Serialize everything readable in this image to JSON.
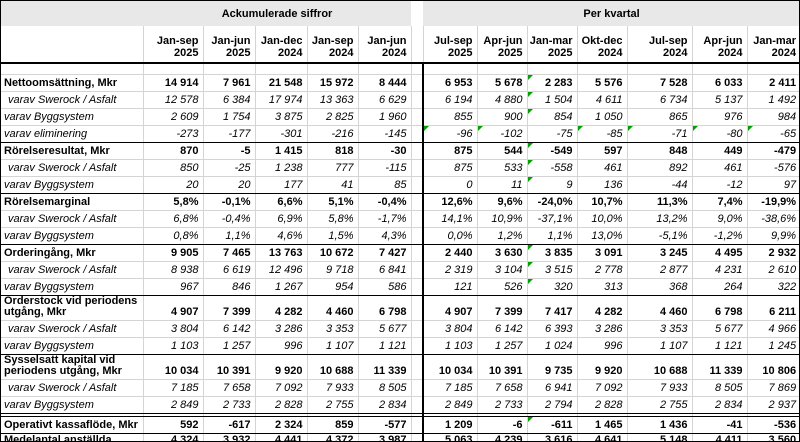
{
  "colors": {
    "band_bg": "#e8e8e8",
    "gridline": "#d4d4d4",
    "section_border": "#000000",
    "flag_green": "#00a000"
  },
  "table": {
    "group_headers": [
      {
        "label": "Ackumulerade siffror"
      },
      {
        "label": "Per kvartal"
      }
    ],
    "columns_left": [
      {
        "period": "Jan-sep",
        "year": "2025"
      },
      {
        "period": "Jan-jun",
        "year": "2025"
      },
      {
        "period": "Jan-dec",
        "year": "2024"
      },
      {
        "period": "Jan-sep",
        "year": "2024"
      },
      {
        "period": "Jan-jun",
        "year": "2024"
      }
    ],
    "columns_right": [
      {
        "period": "Jul-sep",
        "year": "2025"
      },
      {
        "period": "Apr-jun",
        "year": "2025"
      },
      {
        "period": "Jan-mar",
        "year": "2025"
      },
      {
        "period": "Okt-dec",
        "year": "2024"
      },
      {
        "period": "Jul-sep",
        "year": "2024"
      },
      {
        "period": "Apr-jun",
        "year": "2024"
      },
      {
        "period": "Jan-mar",
        "year": "2024"
      }
    ],
    "rows": [
      {
        "label": "Nettoomsättning, Mkr",
        "style": "section",
        "left": [
          "14 914",
          "7 961",
          "21 548",
          "15 972",
          "8 444"
        ],
        "right": [
          "6 953",
          "5 678",
          "2 283",
          "5 576",
          "7 528",
          "6 033",
          "2 411"
        ],
        "flags": [
          2
        ]
      },
      {
        "label": "varav Swerock / Asfalt",
        "style": "sub",
        "indent": 1,
        "left": [
          "12 578",
          "6 384",
          "17 974",
          "13 363",
          "6 629"
        ],
        "right": [
          "6 194",
          "4 880",
          "1 504",
          "4 611",
          "6 734",
          "5 137",
          "1 492"
        ],
        "flags": [
          2
        ]
      },
      {
        "label": "varav Byggsystem",
        "style": "sub",
        "left": [
          "2 609",
          "1 754",
          "3 875",
          "2 825",
          "1 960"
        ],
        "right": [
          "855",
          "900",
          "854",
          "1 050",
          "865",
          "976",
          "984"
        ],
        "flags": [
          2
        ]
      },
      {
        "label": "varav eliminering",
        "style": "sub",
        "left": [
          "-273",
          "-177",
          "-301",
          "-216",
          "-145"
        ],
        "right": [
          "-96",
          "-102",
          "-75",
          "-85",
          "-71",
          "-80",
          "-65"
        ],
        "flags": [
          0,
          1,
          3,
          4,
          5,
          6
        ]
      },
      {
        "label": "Rörelseresultat, Mkr",
        "style": "section",
        "left": [
          "870",
          "-5",
          "1 415",
          "818",
          "-30"
        ],
        "right": [
          "875",
          "544",
          "-549",
          "597",
          "848",
          "449",
          "-479"
        ],
        "flags": [
          2
        ]
      },
      {
        "label": "varav Swerock / Asfalt",
        "style": "sub",
        "indent": 1,
        "left": [
          "850",
          "-25",
          "1 238",
          "777",
          "-115"
        ],
        "right": [
          "875",
          "533",
          "-558",
          "461",
          "892",
          "461",
          "-576"
        ],
        "flags": [
          2
        ]
      },
      {
        "label": "varav Byggsystem",
        "style": "sub",
        "left": [
          "20",
          "20",
          "177",
          "41",
          "85"
        ],
        "right": [
          "0",
          "11",
          "9",
          "136",
          "-44",
          "-12",
          "97"
        ],
        "flags": [
          2
        ]
      },
      {
        "label": "Rörelsemarginal",
        "style": "section",
        "left": [
          "5,8%",
          "-0,1%",
          "6,6%",
          "5,1%",
          "-0,4%"
        ],
        "right": [
          "12,6%",
          "9,6%",
          "-24,0%",
          "10,7%",
          "11,3%",
          "7,4%",
          "-19,9%"
        ],
        "flags": []
      },
      {
        "label": "varav Swerock / Asfalt",
        "style": "sub",
        "indent": 1,
        "left": [
          "6,8%",
          "-0,4%",
          "6,9%",
          "5,8%",
          "-1,7%"
        ],
        "right": [
          "14,1%",
          "10,9%",
          "-37,1%",
          "10,0%",
          "13,2%",
          "9,0%",
          "-38,6%"
        ],
        "flags": []
      },
      {
        "label": "varav Byggsystem",
        "style": "sub",
        "left": [
          "0,8%",
          "1,1%",
          "4,6%",
          "1,5%",
          "4,3%"
        ],
        "right": [
          "0,0%",
          "1,2%",
          "1,1%",
          "13,0%",
          "-5,1%",
          "-1,2%",
          "9,9%"
        ],
        "flags": []
      },
      {
        "label": "Orderingång, Mkr",
        "style": "section",
        "left": [
          "9 905",
          "7 465",
          "13 763",
          "10 672",
          "7 427"
        ],
        "right": [
          "2 440",
          "3 630",
          "3 835",
          "3 091",
          "3 245",
          "4 495",
          "2 932"
        ],
        "flags": [
          2
        ]
      },
      {
        "label": "varav Swerock / Asfalt",
        "style": "sub",
        "indent": 1,
        "left": [
          "8 938",
          "6 619",
          "12 496",
          "9 718",
          "6 841"
        ],
        "right": [
          "2 319",
          "3 104",
          "3 515",
          "2 778",
          "2 877",
          "4 231",
          "2 610"
        ],
        "flags": [
          2
        ]
      },
      {
        "label": "varav Byggsystem",
        "style": "sub",
        "left": [
          "967",
          "846",
          "1 267",
          "954",
          "586"
        ],
        "right": [
          "121",
          "526",
          "320",
          "313",
          "368",
          "264",
          "322"
        ],
        "flags": [
          2
        ]
      },
      {
        "label": "Orderstock vid periodens\nutgång, Mkr",
        "style": "section",
        "two_line": true,
        "left": [
          "4 907",
          "7 399",
          "4 282",
          "4 460",
          "6 798"
        ],
        "right": [
          "4 907",
          "7 399",
          "7 417",
          "4 282",
          "4 460",
          "6 798",
          "6 211"
        ],
        "flags": []
      },
      {
        "label": "varav Swerock / Asfalt",
        "style": "sub",
        "indent": 1,
        "left": [
          "3 804",
          "6 142",
          "3 286",
          "3 353",
          "5 677"
        ],
        "right": [
          "3 804",
          "6 142",
          "6 393",
          "3 286",
          "3 353",
          "5 677",
          "4 966"
        ],
        "flags": []
      },
      {
        "label": "varav Byggsystem",
        "style": "sub",
        "left": [
          "1 103",
          "1 257",
          "996",
          "1 107",
          "1 121"
        ],
        "right": [
          "1 103",
          "1 257",
          "1 024",
          "996",
          "1 107",
          "1 121",
          "1 245"
        ],
        "flags": []
      },
      {
        "label": "Sysselsatt kapital vid\nperiodens utgång, Mkr",
        "style": "section",
        "two_line": true,
        "left": [
          "10 034",
          "10 391",
          "9 920",
          "10 688",
          "11 339"
        ],
        "right": [
          "10 034",
          "10 391",
          "9 735",
          "9 920",
          "10 688",
          "11 339",
          "10 806"
        ],
        "flags": []
      },
      {
        "label": "varav Swerock / Asfalt",
        "style": "sub",
        "indent": 1,
        "left": [
          "7 185",
          "7 658",
          "7 092",
          "7 933",
          "8 505"
        ],
        "right": [
          "7 185",
          "7 658",
          "6 941",
          "7 092",
          "7 933",
          "8 505",
          "7 869"
        ],
        "flags": []
      },
      {
        "label": "varav Byggsystem",
        "style": "sub",
        "left": [
          "2 849",
          "2 733",
          "2 828",
          "2 755",
          "2 834"
        ],
        "right": [
          "2 849",
          "2 733",
          "2 794",
          "2 828",
          "2 755",
          "2 834",
          "2 937"
        ],
        "flags": []
      },
      {
        "label": "Operativt kassaflöde, Mkr",
        "style": "section",
        "gap_before": true,
        "left": [
          "592",
          "-617",
          "2 324",
          "859",
          "-577"
        ],
        "right": [
          "1 209",
          "-6",
          "-611",
          "1 465",
          "1 436",
          "-41",
          "-536"
        ],
        "flags": [
          2
        ]
      },
      {
        "label": "Medelantal anställda",
        "style": "section",
        "left": [
          "4 324",
          "3 932",
          "4 441",
          "4 372",
          "3 987"
        ],
        "right": [
          "5 063",
          "4 239",
          "3 616",
          "4 641",
          "5 148",
          "4 411",
          "3 560"
        ],
        "flags": []
      }
    ]
  }
}
